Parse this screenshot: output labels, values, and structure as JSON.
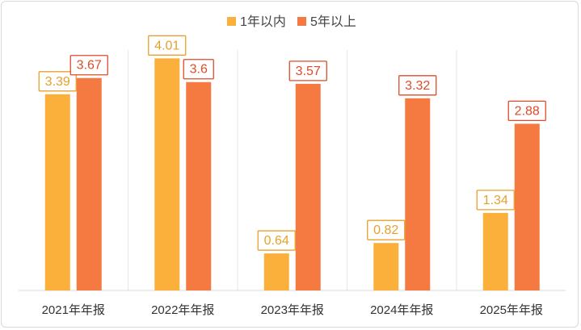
{
  "chart_data": {
    "type": "bar",
    "title": "",
    "xlabel": "",
    "ylabel": "",
    "ylim": [
      0,
      4.6
    ],
    "grid": false,
    "legend_position": "top-center",
    "categories": [
      "2021年年报",
      "2022年年报",
      "2023年年报",
      "2024年年报",
      "2025年年报"
    ],
    "series": [
      {
        "name": "1年以内",
        "color": "#FBB03B",
        "values": [
          3.39,
          4.01,
          0.64,
          0.82,
          1.34
        ]
      },
      {
        "name": "5年以上",
        "color": "#F47A42",
        "values": [
          3.67,
          3.6,
          3.57,
          3.32,
          2.88
        ]
      }
    ],
    "value_labels": [
      [
        "3.39",
        "4.01",
        "0.64",
        "0.82",
        "1.34"
      ],
      [
        "3.67",
        "3.6",
        "3.57",
        "3.32",
        "2.88"
      ]
    ],
    "label_colors": [
      "#E6A12C",
      "#E04A2A"
    ]
  }
}
